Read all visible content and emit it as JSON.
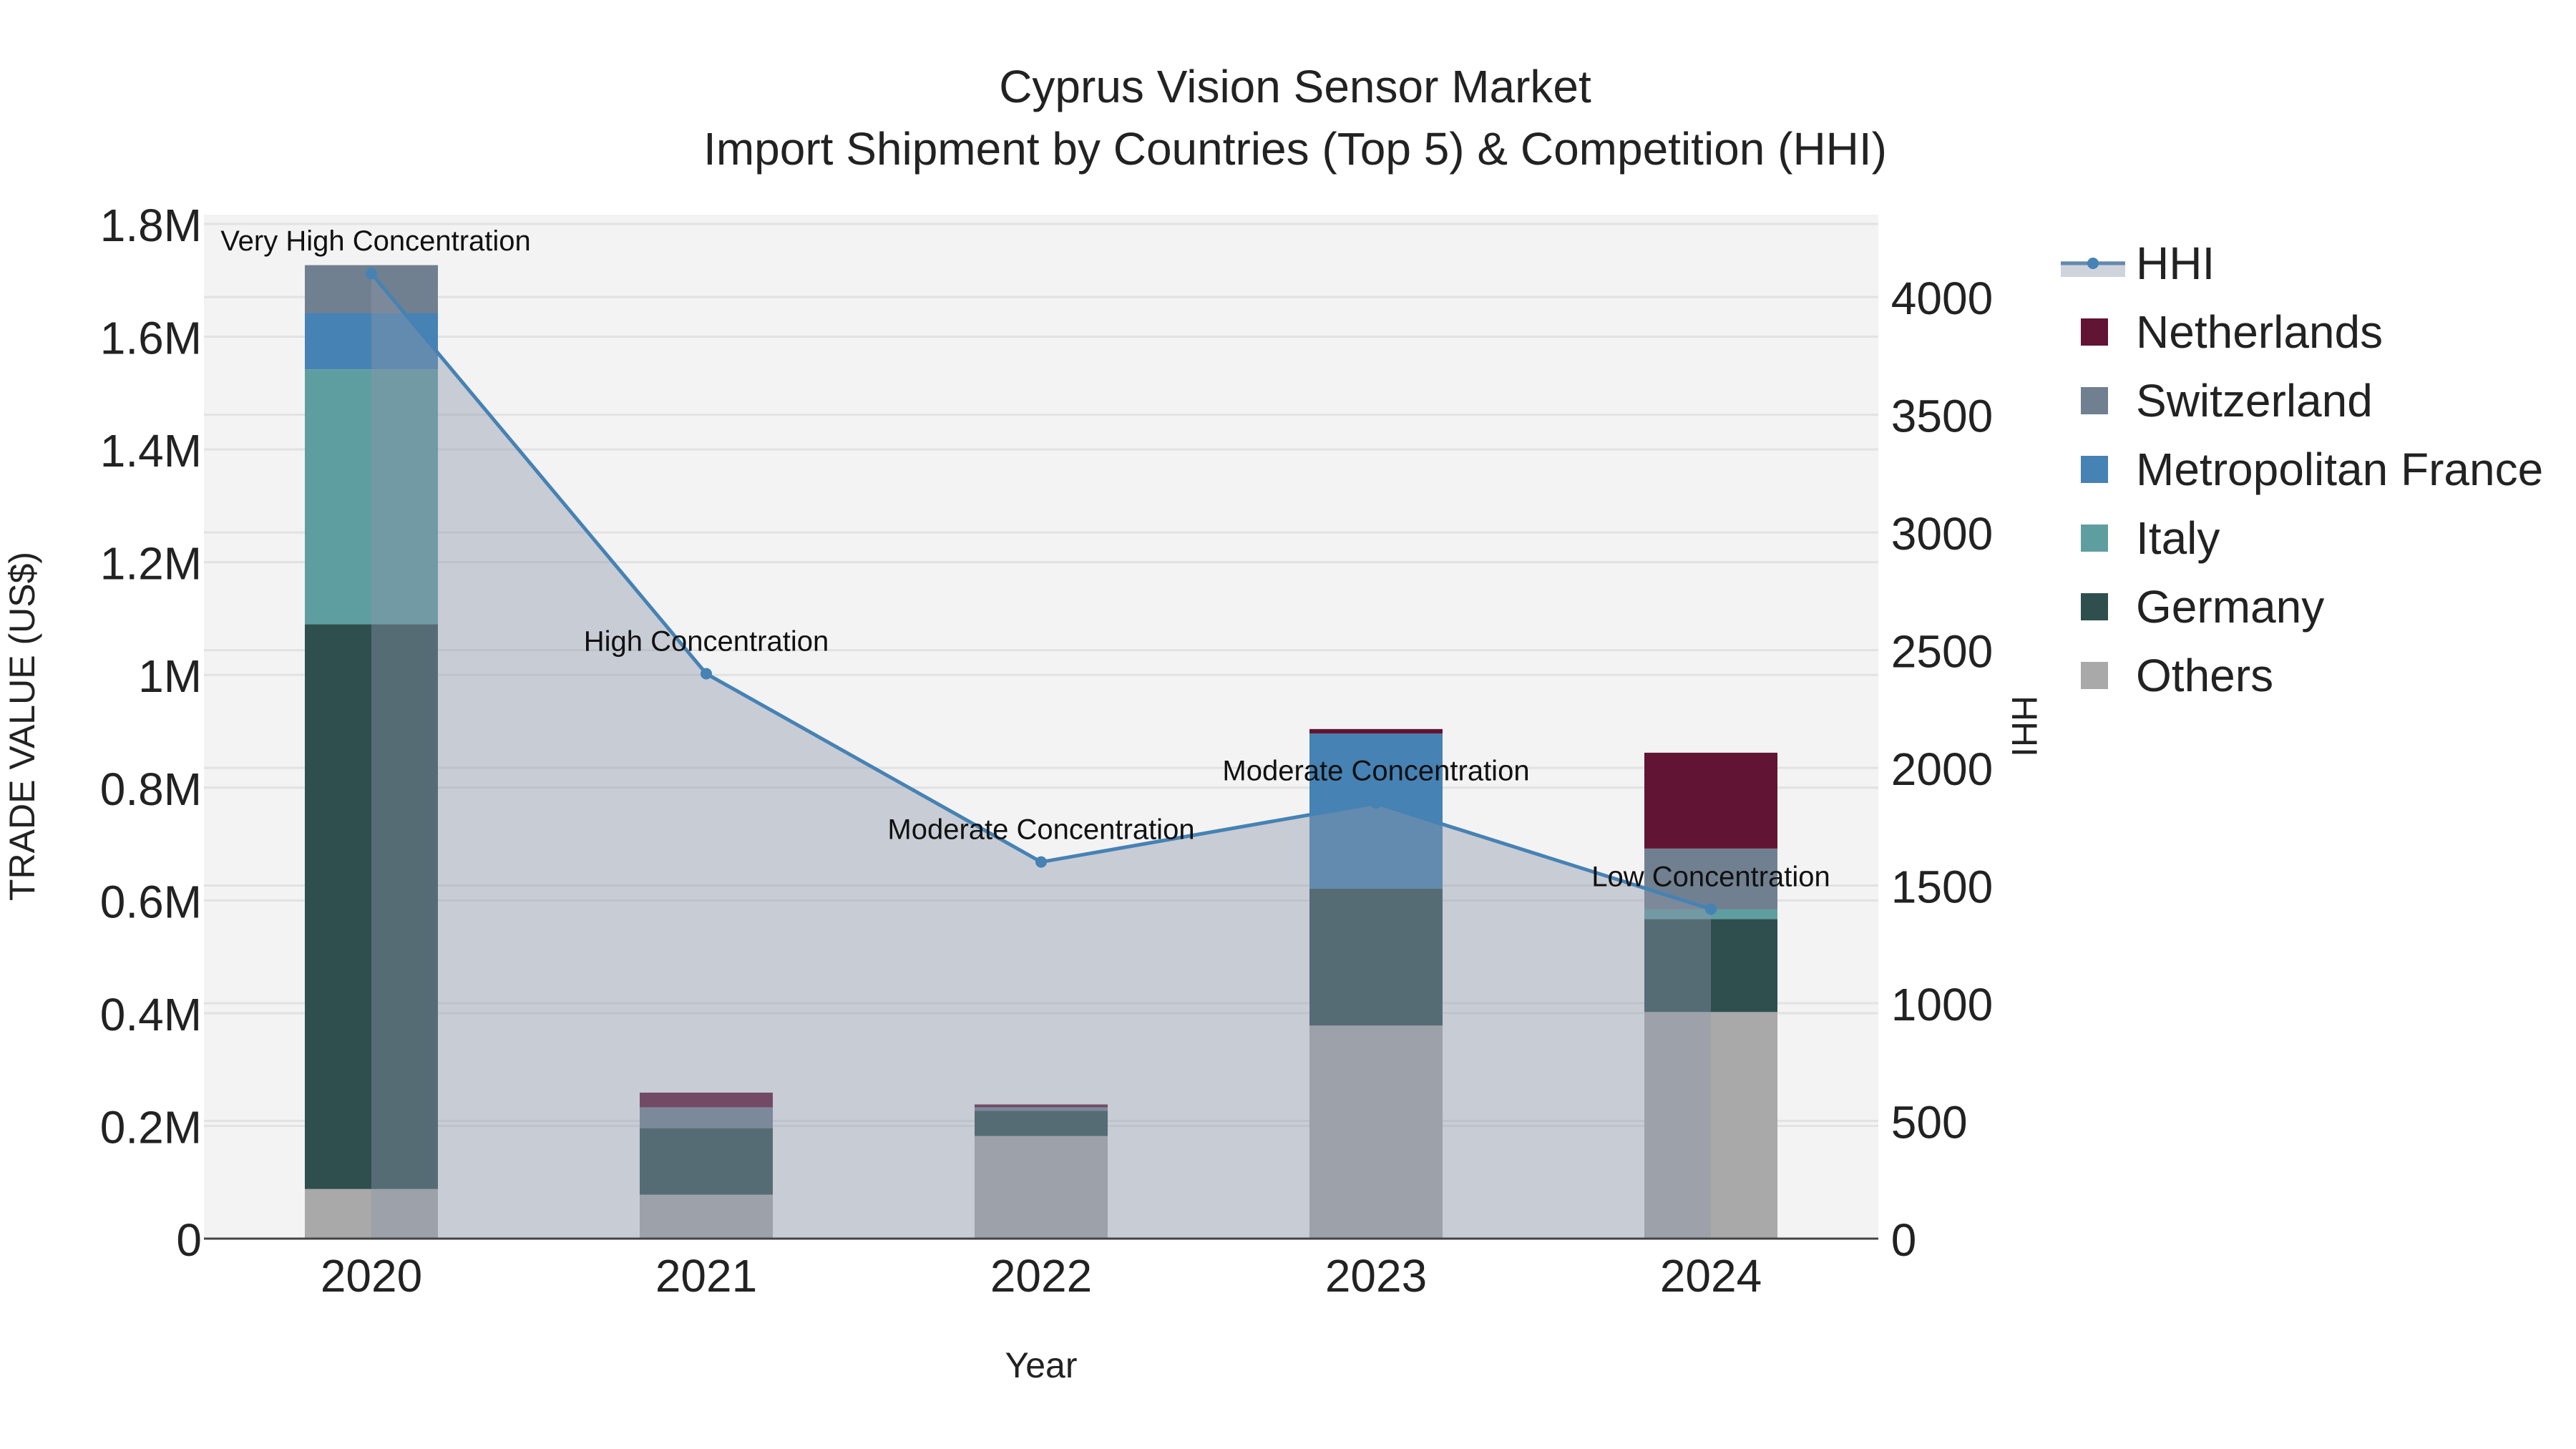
{
  "chart_data": {
    "type": "bar",
    "stacked": true,
    "title": "Cyprus Vision Sensor Market",
    "subtitle": "Import Shipment by Countries (Top 5) & Competition (HHI)",
    "xlabel": "Year",
    "ylabel": "TRADE VALUE (US$)",
    "y2label": "HHI",
    "categories": [
      "2020",
      "2021",
      "2022",
      "2023",
      "2024"
    ],
    "ylim": [
      0,
      1800000
    ],
    "y_ticks": [
      0,
      200000,
      400000,
      600000,
      800000,
      1000000,
      1200000,
      1400000,
      1600000,
      1800000
    ],
    "y_tick_labels": [
      "0",
      "0.2M",
      "0.4M",
      "0.6M",
      "0.8M",
      "1M",
      "1.2M",
      "1.4M",
      "1.6M",
      "1.8M"
    ],
    "y2lim": [
      0,
      4350
    ],
    "y2_ticks": [
      0,
      500,
      1000,
      1500,
      2000,
      2500,
      3000,
      3500,
      4000
    ],
    "y2_tick_labels": [
      "0",
      "500",
      "1000",
      "1500",
      "2000",
      "2500",
      "3000",
      "3500",
      "4000"
    ],
    "series": [
      {
        "name": "Others",
        "color": "#a9a9a9",
        "values": [
          88000,
          78000,
          182000,
          378000,
          402000
        ]
      },
      {
        "name": "Germany",
        "color": "#2f4f4f",
        "values": [
          1002000,
          118000,
          45000,
          243000,
          165000
        ]
      },
      {
        "name": "Italy",
        "color": "#5f9ea0",
        "values": [
          452000,
          0,
          0,
          0,
          17000
        ]
      },
      {
        "name": "Metropolitan France",
        "color": "#4682b4",
        "values": [
          100000,
          0,
          0,
          275000,
          0
        ]
      },
      {
        "name": "Switzerland",
        "color": "#708090",
        "values": [
          85000,
          37000,
          6000,
          0,
          108000
        ]
      },
      {
        "name": "Netherlands",
        "color": "#611434",
        "values": [
          0,
          26000,
          5000,
          8000,
          170000
        ]
      }
    ],
    "hhi": {
      "name": "HHI",
      "color": "#4682b4",
      "values": [
        4100,
        2400,
        1600,
        1850,
        1400
      ],
      "labels": [
        "Very High Concentration",
        "High Concentration",
        "Moderate Concentration",
        "Moderate Concentration",
        "Low Concentration"
      ]
    },
    "legend_position": "right"
  }
}
